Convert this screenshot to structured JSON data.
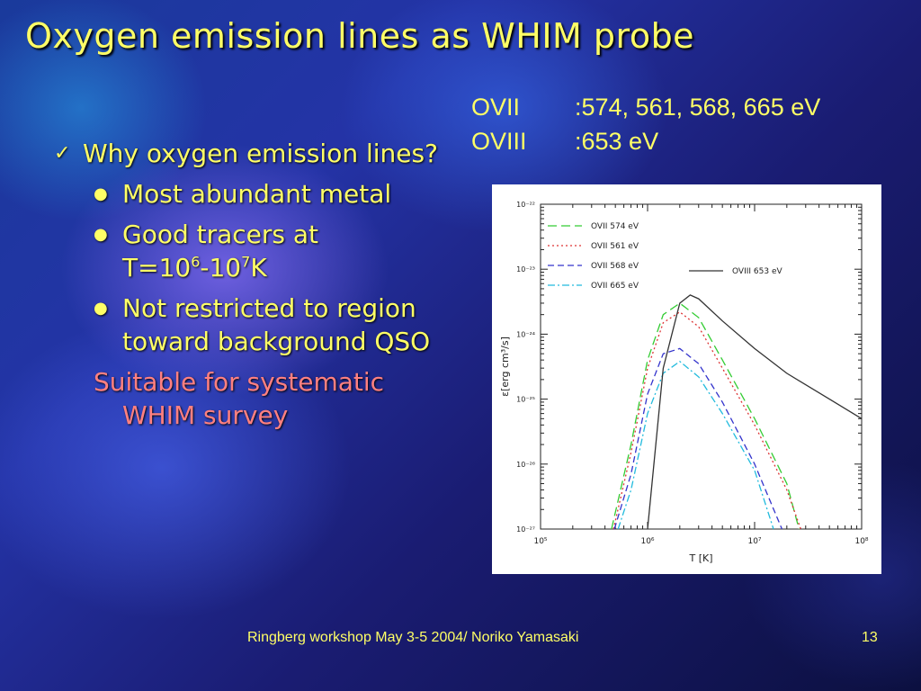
{
  "slide": {
    "title": "Oxygen emission lines as WHIM probe",
    "lines": [
      {
        "name": "OVII",
        "value": ":574, 561, 568, 665 eV"
      },
      {
        "name": "OVIII",
        "value": ":653 eV"
      }
    ],
    "bullet": "Why oxygen emission lines?",
    "sub1": "Most abundant metal",
    "sub2_a": "Good tracers at",
    "sub2_b": "T=10",
    "sub2_exp1": "6",
    "sub2_c": "-10",
    "sub2_exp2": "7",
    "sub2_d": "K",
    "sub3": "Not restricted to region toward background QSO",
    "highlight": "Suitable for systematic WHIM survey",
    "footer": "Ringberg workshop May 3-5 2004/ Noriko Yamasaki",
    "page": "13",
    "check_icon": "checkmark-icon",
    "colors": {
      "text": "#ffff66",
      "highlight": "#ff8080"
    }
  },
  "chart_data": {
    "type": "line",
    "xscale": "log",
    "yscale": "log",
    "xlim": [
      100000,
      100000000
    ],
    "ylim": [
      1e-27,
      1e-22
    ],
    "xlabel": "T [K]",
    "ylabel": "ε[erg cm³/s]",
    "xticks": [
      "10⁵",
      "10⁶",
      "10⁷",
      "10⁸"
    ],
    "yticks": [
      "10⁻²²",
      "10⁻²³",
      "10⁻²⁴",
      "10⁻²⁵",
      "10⁻²⁶",
      "10⁻²⁷"
    ],
    "legend_position": "top-left",
    "series": [
      {
        "name": "OVII   574 eV",
        "color": "#33cc33",
        "dash": "10,5",
        "points": [
          [
            460000,
            1e-27
          ],
          [
            700000,
            2e-26
          ],
          [
            1000000,
            4e-25
          ],
          [
            1400000,
            2e-24
          ],
          [
            2000000,
            3e-24
          ],
          [
            3000000,
            1.8e-24
          ],
          [
            5000000,
            4e-25
          ],
          [
            10000000,
            5e-26
          ],
          [
            20000000,
            5e-27
          ],
          [
            26000000,
            1e-27
          ]
        ]
      },
      {
        "name": "OVII   561 eV",
        "color": "#dd3333",
        "dash": "2,3",
        "points": [
          [
            480000,
            1e-27
          ],
          [
            700000,
            1.5e-26
          ],
          [
            1000000,
            3e-25
          ],
          [
            1400000,
            1.5e-24
          ],
          [
            2000000,
            2.2e-24
          ],
          [
            3000000,
            1.3e-24
          ],
          [
            5000000,
            3e-25
          ],
          [
            10000000,
            4e-26
          ],
          [
            20000000,
            4e-27
          ],
          [
            27000000,
            1e-27
          ]
        ]
      },
      {
        "name": "OVII   568 eV",
        "color": "#3333cc",
        "dash": "7,4",
        "points": [
          [
            490000,
            1e-27
          ],
          [
            700000,
            7e-27
          ],
          [
            1000000,
            1.2e-25
          ],
          [
            1400000,
            5e-25
          ],
          [
            2000000,
            6e-25
          ],
          [
            3000000,
            3.5e-25
          ],
          [
            5000000,
            9e-26
          ],
          [
            10000000,
            1e-26
          ],
          [
            18000000,
            1e-27
          ]
        ]
      },
      {
        "name": "OVII   665 eV",
        "color": "#22bbdd",
        "dash": "8,3,2,3",
        "points": [
          [
            530000,
            1e-27
          ],
          [
            700000,
            4e-27
          ],
          [
            1000000,
            6e-26
          ],
          [
            1400000,
            2.5e-25
          ],
          [
            2000000,
            3.8e-25
          ],
          [
            3000000,
            2.2e-25
          ],
          [
            5000000,
            6e-26
          ],
          [
            10000000,
            8e-27
          ],
          [
            15000000,
            1e-27
          ]
        ]
      },
      {
        "name": "OVIII 653 eV",
        "color": "#333333",
        "dash": "",
        "points": [
          [
            1000000,
            1e-27
          ],
          [
            1400000,
            3e-25
          ],
          [
            2000000,
            3e-24
          ],
          [
            2500000,
            4e-24
          ],
          [
            3000000,
            3.5e-24
          ],
          [
            5000000,
            1.6e-24
          ],
          [
            10000000,
            6e-25
          ],
          [
            20000000,
            2.5e-25
          ],
          [
            50000000,
            1e-25
          ],
          [
            100000000,
            5e-26
          ]
        ]
      }
    ]
  }
}
